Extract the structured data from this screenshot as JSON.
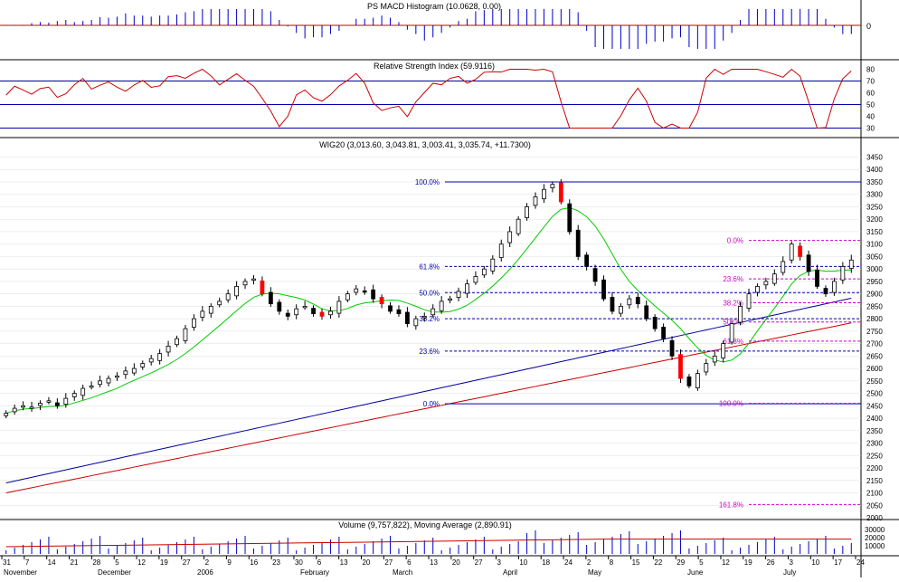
{
  "colors": {
    "grid": "#000000",
    "macd": "#0000cc",
    "rsi": "#cc0000",
    "ma_short": "#00cc00",
    "ma_mid": "#000099",
    "ma_long": "#cc0000",
    "fib_blue": "#0000aa",
    "fib_magenta": "#cc00cc",
    "candle_up": "#ffffff",
    "candle_down": "#000000",
    "candle_red": "#ff0000",
    "volume": "#0000cc"
  },
  "panels": {
    "macd": {
      "title": "PS MACD Histogram (10.0628, 0.00)",
      "y_tick": "0"
    },
    "rsi": {
      "title": "Relative Strength Index (59.9116)",
      "y_ticks": [
        "80",
        "70",
        "60",
        "50",
        "40",
        "30"
      ]
    },
    "price": {
      "title": "WIG20 (3,013.60, 3,043.81, 3,003.41, 3,035.74, +11.7300)",
      "y_ticks": [
        "3450",
        "3400",
        "3350",
        "3300",
        "3250",
        "3200",
        "3150",
        "3100",
        "3050",
        "3000",
        "2950",
        "2900",
        "2850",
        "2800",
        "2750",
        "2700",
        "2650",
        "2600",
        "2550",
        "2500",
        "2450",
        "2400",
        "2350",
        "2300",
        "2250",
        "2200",
        "2150",
        "2100",
        "2050",
        "2000"
      ]
    },
    "volume": {
      "title": "Volume (9,757,822), Moving Average (2,890.91)",
      "y_ticks": [
        "30000",
        "20000",
        "10000"
      ]
    }
  },
  "fib_left": {
    "labels": [
      "100.0%",
      "61.8%",
      "50.0%",
      "38.2%",
      "23.6%",
      "0.0%"
    ]
  },
  "fib_right": {
    "labels": [
      "0.0%",
      "23.6%",
      "38.2%",
      "50.0%",
      "61.8%",
      "100.0%",
      "161.8%"
    ]
  },
  "x_axis": {
    "days": [
      "31",
      "7",
      "14",
      "21",
      "28",
      "5",
      "12",
      "19",
      "27",
      "2",
      "9",
      "16",
      "23",
      "30",
      "6",
      "13",
      "20",
      "27",
      "6",
      "13",
      "20",
      "27",
      "3",
      "10",
      "18",
      "24",
      "2",
      "8",
      "15",
      "22",
      "29",
      "5",
      "12",
      "19",
      "26",
      "3",
      "10",
      "17",
      "24"
    ],
    "months": [
      "November",
      "December",
      "2006",
      "February",
      "March",
      "April",
      "May",
      "June",
      "July"
    ]
  },
  "chart_data": {
    "type": "candlestick",
    "title": "WIG20 (3,013.60, 3,043.81, 3,003.41, 3,035.74, +11.7300)",
    "ylim": [
      2000,
      3470
    ],
    "last": {
      "open": 3013.6,
      "high": 3043.81,
      "low": 3003.41,
      "close": 3035.74,
      "change": 11.73
    },
    "close_approx": [
      2420,
      2440,
      2450,
      2445,
      2460,
      2470,
      2450,
      2480,
      2500,
      2520,
      2530,
      2550,
      2560,
      2570,
      2590,
      2600,
      2620,
      2640,
      2660,
      2690,
      2720,
      2760,
      2800,
      2830,
      2850,
      2870,
      2900,
      2930,
      2950,
      2960,
      2900,
      2860,
      2830,
      2810,
      2840,
      2850,
      2820,
      2810,
      2830,
      2870,
      2900,
      2920,
      2910,
      2880,
      2860,
      2830,
      2820,
      2780,
      2800,
      2810,
      2840,
      2870,
      2880,
      2910,
      2940,
      2970,
      3000,
      3040,
      3100,
      3150,
      3200,
      3250,
      3290,
      3320,
      3340,
      3270,
      3150,
      3050,
      3010,
      2950,
      2880,
      2830,
      2850,
      2880,
      2860,
      2800,
      2760,
      2720,
      2650,
      2560,
      2530,
      2580,
      2620,
      2650,
      2700,
      2780,
      2850,
      2900,
      2930,
      2950,
      2980,
      3030,
      3100,
      3050,
      2990,
      2930,
      2900,
      2950,
      3010,
      3036
    ],
    "fib_left_levels": {
      "100.0%": 3350,
      "61.8%": 3010,
      "50.0%": 2905,
      "38.2%": 2800,
      "23.6%": 2670,
      "0.0%": 2458
    },
    "fib_right_levels": {
      "0.0%": 3115,
      "23.6%": 2960,
      "38.2%": 2864,
      "50.0%": 2787,
      "61.8%": 2710,
      "100.0%": 2460,
      "161.8%": 2053
    },
    "macd_panel": {
      "title": "PS MACD Histogram (10.0628, 0.00)",
      "last": 10.0628
    },
    "rsi_panel": {
      "title": "Relative Strength Index (59.9116)",
      "last": 59.9116,
      "ylim": [
        25,
        85
      ]
    },
    "volume_panel": {
      "title": "Volume (9,757,822), Moving Average (2,890.91)",
      "last": 9757822,
      "moving_average": 2890.91
    }
  }
}
